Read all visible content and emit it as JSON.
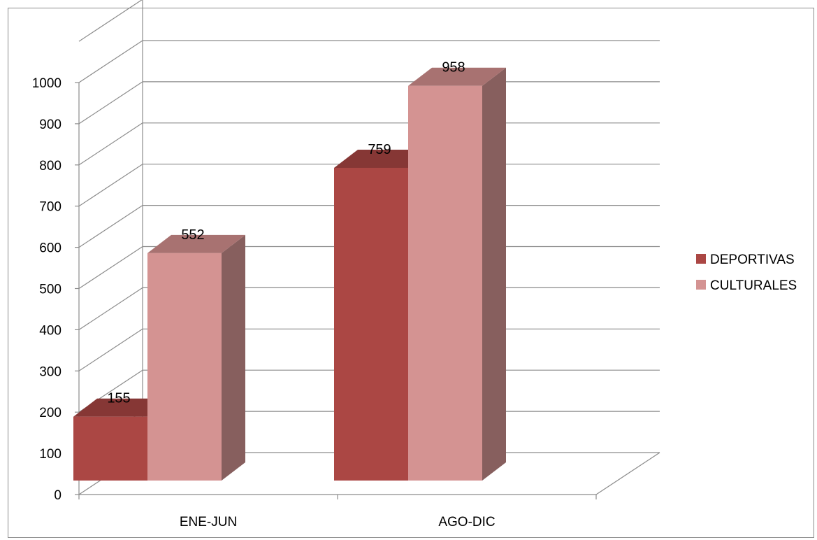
{
  "chart_data": {
    "type": "bar",
    "title": "",
    "categories": [
      "ENE-JUN",
      "AGO-DIC"
    ],
    "series": [
      {
        "name": "DEPORTIVAS",
        "values": [
          155,
          759
        ],
        "color": "#ab4744",
        "top_color": "#863735",
        "side_color": "#863735"
      },
      {
        "name": "CULTURALES",
        "values": [
          552,
          958
        ],
        "color": "#d49392",
        "top_color": "#a87271",
        "side_color": "#875f5e"
      }
    ],
    "y_ticks": [
      "0",
      "100",
      "200",
      "300",
      "400",
      "500",
      "600",
      "700",
      "800",
      "900",
      "1000"
    ],
    "ylim": [
      0,
      1000
    ],
    "three_d": true,
    "grid": true,
    "legend_position": "right",
    "data_labels": true
  }
}
